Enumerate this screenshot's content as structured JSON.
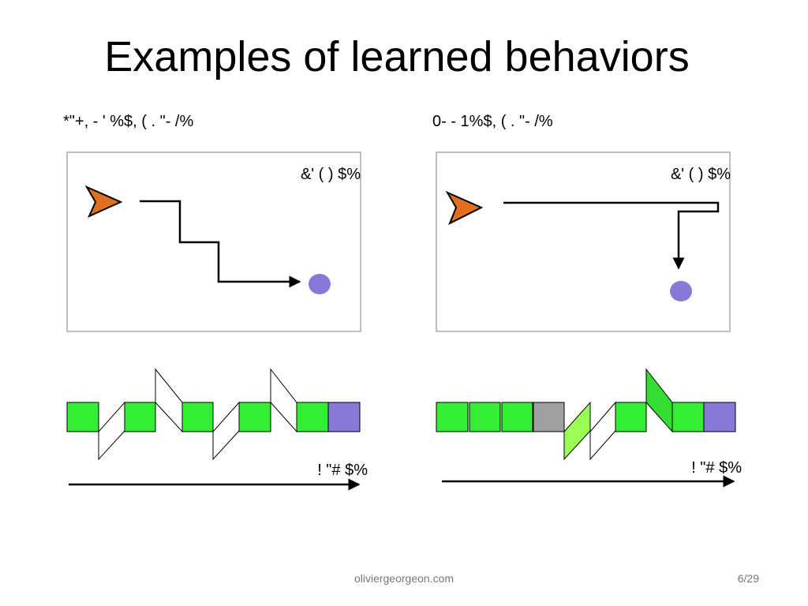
{
  "title": "Examples of learned behaviors",
  "panels": [
    {
      "heading": "*\"+, - ' %$, ( . \"- /%",
      "goal_label": "&' ( ) $%",
      "time_label": "! \"# $%"
    },
    {
      "heading": "0- - 1%$, ( . \"- /%",
      "goal_label": "&' ( ) $%",
      "time_label": "! \"# $%"
    }
  ],
  "footer": {
    "site": "oliviergeorgeon.com",
    "page": "6/29"
  }
}
